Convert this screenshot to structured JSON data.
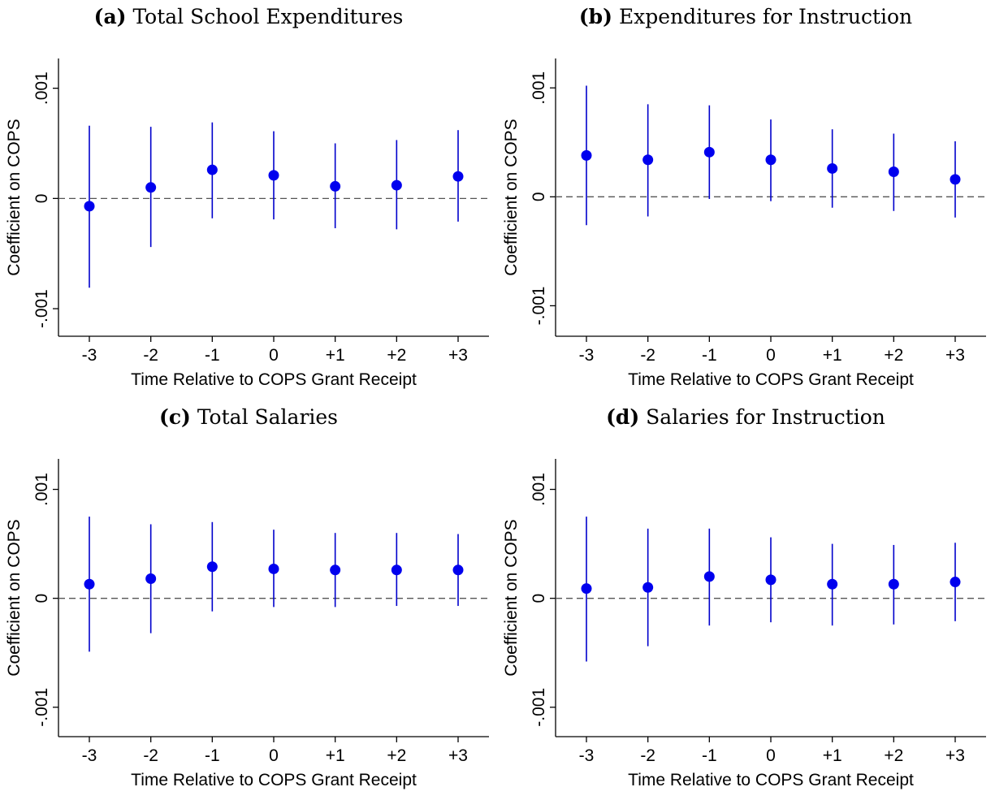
{
  "chart_data": [
    {
      "type": "scatter",
      "panel_tag": "(a)",
      "title": "Total School Expenditures",
      "xlabel": "Time Relative to COPS Grant Receipt",
      "ylabel": "Coefficient on COPS",
      "categories": [
        "-3",
        "-2",
        "-1",
        "0",
        "+1",
        "+2",
        "+3"
      ],
      "yticks": [
        "-.001",
        "0",
        ".001"
      ],
      "ylim": [
        -0.00125,
        0.00127
      ],
      "reference_line": 0,
      "series": [
        {
          "estimates": [
            -7e-05,
            0.0001,
            0.00026,
            0.00021,
            0.00011,
            0.00012,
            0.0002
          ],
          "ci_low": [
            -0.00081,
            -0.00044,
            -0.00018,
            -0.00019,
            -0.00027,
            -0.00028,
            -0.00021
          ],
          "ci_high": [
            0.00066,
            0.00065,
            0.00069,
            0.00061,
            0.0005,
            0.00053,
            0.00062
          ]
        }
      ]
    },
    {
      "type": "scatter",
      "panel_tag": "(b)",
      "title": "Expenditures for Instruction",
      "xlabel": "Time Relative to COPS Grant Receipt",
      "ylabel": "Coefficient on COPS",
      "categories": [
        "-3",
        "-2",
        "-1",
        "0",
        "+1",
        "+2",
        "+3"
      ],
      "yticks": [
        "-.001",
        "0",
        ".001"
      ],
      "ylim": [
        -0.00128,
        0.00127
      ],
      "reference_line": 0,
      "series": [
        {
          "estimates": [
            0.00038,
            0.00034,
            0.00041,
            0.00034,
            0.00026,
            0.00023,
            0.00016
          ],
          "ci_low": [
            -0.00026,
            -0.00018,
            -2e-05,
            -4e-05,
            -0.0001,
            -0.00013,
            -0.00019
          ],
          "ci_high": [
            0.00102,
            0.00085,
            0.00084,
            0.00071,
            0.00062,
            0.00058,
            0.00051
          ]
        }
      ]
    },
    {
      "type": "scatter",
      "panel_tag": "(c)",
      "title": "Total Salaries",
      "xlabel": "Time Relative to COPS Grant Receipt",
      "ylabel": "Coefficient on COPS",
      "categories": [
        "-3",
        "-2",
        "-1",
        "0",
        "+1",
        "+2",
        "+3"
      ],
      "yticks": [
        "-.001",
        "0",
        ".001"
      ],
      "ylim": [
        -0.00127,
        0.00128
      ],
      "reference_line": 0,
      "series": [
        {
          "estimates": [
            0.00013,
            0.00018,
            0.00029,
            0.00027,
            0.00026,
            0.00026,
            0.00026
          ],
          "ci_low": [
            -0.00049,
            -0.00032,
            -0.00012,
            -8e-05,
            -8e-05,
            -7e-05,
            -7e-05
          ],
          "ci_high": [
            0.00075,
            0.00068,
            0.0007,
            0.00063,
            0.0006,
            0.0006,
            0.00059
          ]
        }
      ]
    },
    {
      "type": "scatter",
      "panel_tag": "(d)",
      "title": "Salaries for Instruction",
      "xlabel": "Time Relative to COPS Grant Receipt",
      "ylabel": "Coefficient on COPS",
      "categories": [
        "-3",
        "-2",
        "-1",
        "0",
        "+1",
        "+2",
        "+3"
      ],
      "yticks": [
        "-.001",
        "0",
        ".001"
      ],
      "ylim": [
        -0.00127,
        0.00128
      ],
      "reference_line": 0,
      "series": [
        {
          "estimates": [
            9e-05,
            0.0001,
            0.0002,
            0.00017,
            0.00013,
            0.00013,
            0.00015
          ],
          "ci_low": [
            -0.00058,
            -0.00044,
            -0.00025,
            -0.00022,
            -0.00025,
            -0.00024,
            -0.00021
          ],
          "ci_high": [
            0.00075,
            0.00064,
            0.00064,
            0.00056,
            0.0005,
            0.00049,
            0.00051
          ]
        }
      ]
    }
  ],
  "colors": {
    "markers": "#0000ee",
    "ci_lines": "#0000cc",
    "reference_line": "#555555",
    "axes": "#000000"
  }
}
